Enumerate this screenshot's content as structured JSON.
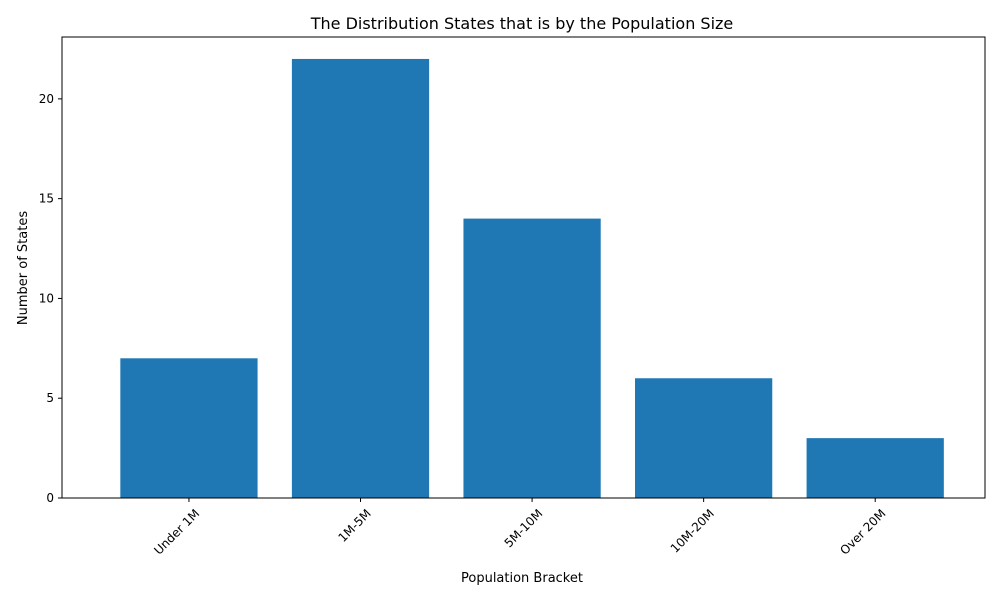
{
  "chart_data": {
    "type": "bar",
    "title": "The Distribution States that is by the Population Size",
    "xlabel": "Population Bracket",
    "ylabel": "Number of States",
    "categories": [
      "Under 1M",
      "1M-5M",
      "5M-10M",
      "10M-20M",
      "Over 20M"
    ],
    "values": [
      7,
      22,
      14,
      6,
      3
    ],
    "ylim": [
      0,
      23.1
    ],
    "yticks": [
      0,
      5,
      10,
      15,
      20
    ],
    "grid": false,
    "bar_color": "#1f77b4",
    "xtick_rotation_deg": 45
  }
}
